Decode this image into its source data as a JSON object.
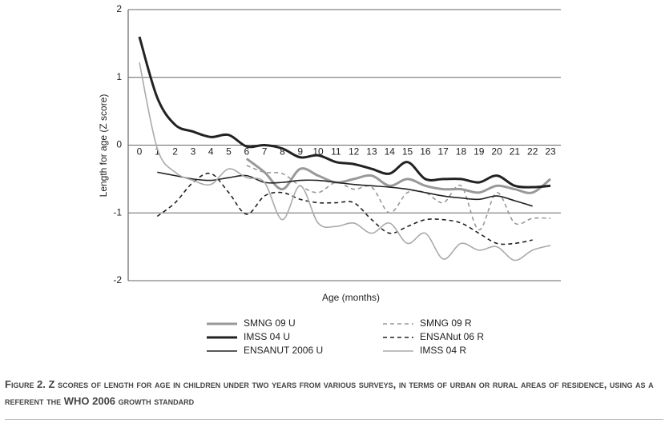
{
  "chart_data": {
    "type": "line",
    "y_label": "Length for age (Z score)",
    "x_label": "Age (months)",
    "caption": "Figure 2. Z scores of length for age in children under two years from various surveys, in terms of urban or rural areas of residence, using as a referent the WHO 2006 growth standard",
    "categories": [
      0,
      1,
      2,
      3,
      4,
      5,
      6,
      7,
      8,
      9,
      10,
      11,
      12,
      13,
      14,
      15,
      16,
      17,
      18,
      19,
      20,
      21,
      22,
      23
    ],
    "ylim": [
      -2,
      2
    ],
    "yticks": [
      2,
      1,
      0,
      -1,
      -2
    ],
    "grid": true,
    "series": [
      {
        "name": "SMNG 09 U",
        "color": "#999999",
        "width": 3,
        "dashed": false,
        "values": [
          null,
          null,
          null,
          null,
          null,
          null,
          -0.2,
          -0.4,
          -0.65,
          -0.35,
          -0.45,
          -0.55,
          -0.5,
          -0.45,
          -0.6,
          -0.5,
          -0.6,
          -0.65,
          -0.65,
          -0.7,
          -0.6,
          -0.65,
          -0.7,
          -0.5
        ]
      },
      {
        "name": "SMNG 09 R",
        "color": "#999999",
        "width": 1.6,
        "dashed": true,
        "values": [
          null,
          null,
          null,
          null,
          null,
          null,
          -0.3,
          -0.4,
          -0.42,
          -0.6,
          -0.7,
          -0.55,
          -0.65,
          -0.62,
          -1.0,
          -0.7,
          -0.7,
          -0.85,
          -0.6,
          -1.25,
          -0.7,
          -1.15,
          -1.08,
          -1.08
        ]
      },
      {
        "name": "IMSS 04 U",
        "color": "#222222",
        "width": 3,
        "dashed": false,
        "values": [
          1.6,
          0.7,
          0.3,
          0.2,
          0.12,
          0.15,
          -0.02,
          0.0,
          -0.05,
          -0.18,
          -0.15,
          -0.25,
          -0.28,
          -0.35,
          -0.42,
          -0.25,
          -0.5,
          -0.5,
          -0.5,
          -0.55,
          -0.45,
          -0.6,
          -0.62,
          -0.6
        ]
      },
      {
        "name": "ENSANut 06 R",
        "color": "#222222",
        "width": 1.6,
        "dashed": true,
        "values": [
          null,
          -1.05,
          -0.85,
          -0.55,
          -0.42,
          -0.7,
          -1.02,
          -0.75,
          -0.7,
          -0.8,
          -0.85,
          -0.85,
          -0.85,
          -1.1,
          -1.3,
          -1.2,
          -1.1,
          -1.1,
          -1.15,
          -1.3,
          -1.45,
          -1.45,
          -1.4,
          null
        ]
      },
      {
        "name": "ENSANUT 2006 U",
        "color": "#222222",
        "width": 1.6,
        "dashed": false,
        "values": [
          null,
          -0.4,
          -0.45,
          -0.5,
          -0.52,
          -0.48,
          -0.45,
          -0.55,
          -0.55,
          -0.52,
          -0.52,
          -0.55,
          -0.58,
          -0.6,
          -0.62,
          -0.65,
          -0.7,
          -0.75,
          -0.78,
          -0.8,
          -0.75,
          -0.82,
          -0.9,
          null
        ]
      },
      {
        "name": "IMSS 04 R",
        "color": "#aaaaaa",
        "width": 1.6,
        "dashed": false,
        "values": [
          1.22,
          -0.05,
          -0.4,
          -0.52,
          -0.58,
          -0.35,
          -0.48,
          -0.55,
          -1.1,
          -0.6,
          -1.15,
          -1.2,
          -1.15,
          -1.3,
          -1.15,
          -1.45,
          -1.3,
          -1.68,
          -1.45,
          -1.55,
          -1.5,
          -1.7,
          -1.55,
          -1.48
        ]
      }
    ]
  }
}
